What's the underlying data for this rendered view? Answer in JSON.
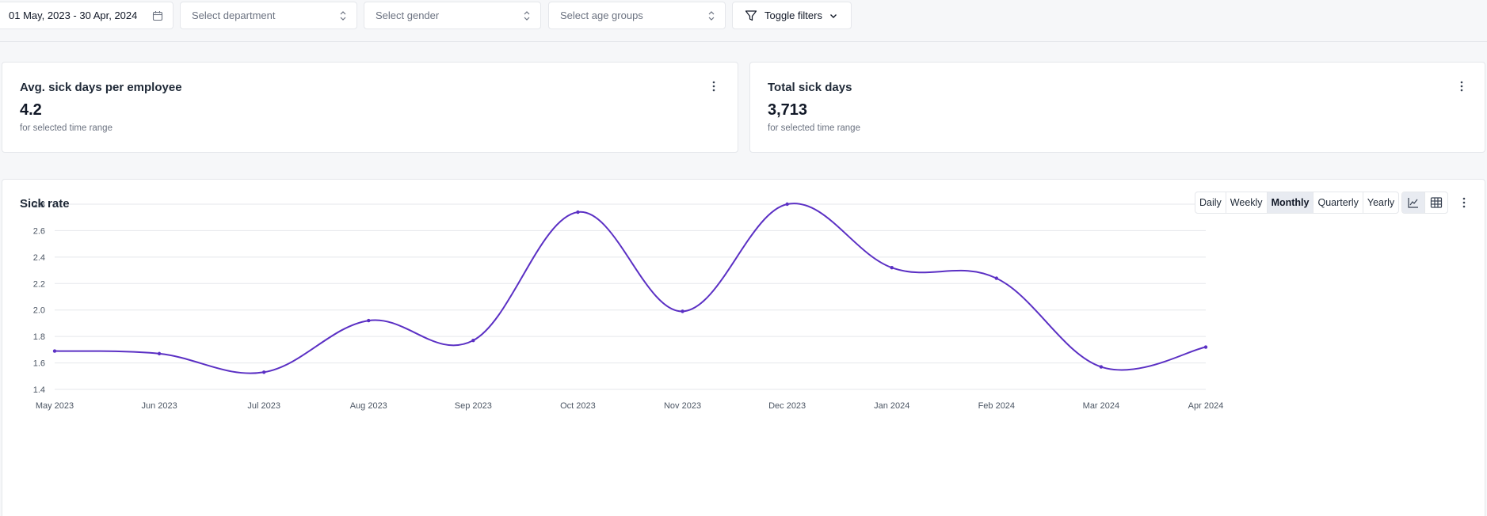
{
  "filters": {
    "date_range": "01 May, 2023 - 30 Apr, 2024",
    "department_placeholder": "Select department",
    "gender_placeholder": "Select gender",
    "age_placeholder": "Select age groups",
    "toggle_label": "Toggle filters"
  },
  "kpis": [
    {
      "title": "Avg. sick days per employee",
      "value": "4.2",
      "subtitle": "for selected time range"
    },
    {
      "title": "Total sick days",
      "value": "3,713",
      "subtitle": "for selected time range"
    }
  ],
  "chart_card": {
    "title": "Sick rate",
    "periods": [
      "Daily",
      "Weekly",
      "Monthly",
      "Quarterly",
      "Yearly"
    ],
    "active_period": "Monthly",
    "views": [
      "line-chart-icon",
      "table-icon"
    ],
    "active_view": "line-chart-icon"
  },
  "colors": {
    "line": "#5b30c4",
    "grid": "#e5e7eb",
    "axis_text": "#4b5563"
  },
  "chart_data": {
    "type": "line",
    "title": "Sick rate",
    "xlabel": "",
    "ylabel": "",
    "categories": [
      "May 2023",
      "Jun 2023",
      "Jul 2023",
      "Aug 2023",
      "Sep 2023",
      "Oct 2023",
      "Nov 2023",
      "Dec 2023",
      "Jan 2024",
      "Feb 2024",
      "Mar 2024",
      "Apr 2024"
    ],
    "series": [
      {
        "values": [
          1.69,
          1.67,
          1.53,
          1.92,
          1.77,
          2.74,
          1.99,
          2.8,
          2.32,
          2.24,
          1.57,
          1.72
        ]
      }
    ],
    "yticks": [
      "1.4",
      "1.6",
      "1.8",
      "2.0",
      "2.2",
      "2.4",
      "2.6",
      "2.8"
    ],
    "ylim": [
      1.4,
      2.8
    ],
    "grid": true
  }
}
